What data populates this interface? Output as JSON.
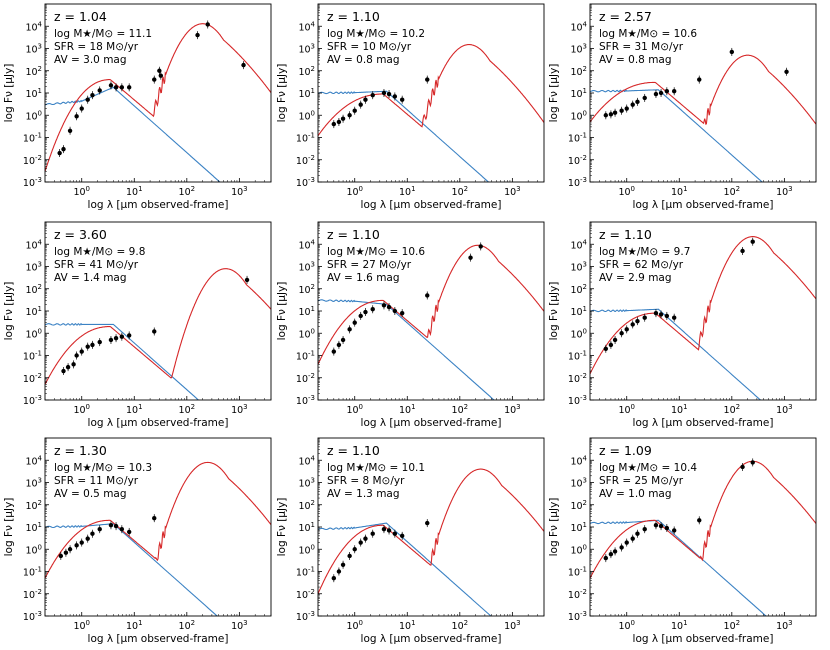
{
  "chart_data": [
    {
      "type": "line",
      "z_label": "z = 1.04",
      "mass_label": "log M★/M⊙ = 11.1",
      "sfr_label": "SFR = 18 M⊙/yr",
      "av_label": "AV = 3.0 mag",
      "blue_peak": 18,
      "blue_uv": 3,
      "red_peak": 13000,
      "red_peak_x": 200,
      "red_opt": 40,
      "red_start": 0.003,
      "points": [
        [
          0.38,
          0.02
        ],
        [
          0.45,
          0.03
        ],
        [
          0.6,
          0.2
        ],
        [
          0.8,
          0.9
        ],
        [
          1.0,
          2
        ],
        [
          1.3,
          5
        ],
        [
          1.6,
          8
        ],
        [
          2.2,
          13
        ],
        [
          3.6,
          22
        ],
        [
          4.5,
          18
        ],
        [
          5.8,
          18
        ],
        [
          8,
          18
        ],
        [
          24,
          40
        ],
        [
          30,
          100
        ],
        [
          32,
          60
        ],
        [
          160,
          4000
        ],
        [
          250,
          12000
        ],
        [
          1200,
          180
        ]
      ]
    },
    {
      "type": "line",
      "z_label": "z = 1.10",
      "mass_label": "log M★/M⊙ = 10.2",
      "sfr_label": "SFR = 10 M⊙/yr",
      "av_label": "AV = 0.8 mag",
      "blue_peak": 12,
      "blue_uv": 10,
      "red_peak": 1500,
      "red_peak_x": 150,
      "red_opt": 9,
      "red_start": 0.12,
      "points": [
        [
          0.4,
          0.4
        ],
        [
          0.5,
          0.5
        ],
        [
          0.6,
          0.7
        ],
        [
          0.8,
          1.0
        ],
        [
          1.0,
          1.6
        ],
        [
          1.3,
          3
        ],
        [
          1.6,
          5
        ],
        [
          2.2,
          8
        ],
        [
          3.6,
          10
        ],
        [
          4.5,
          9
        ],
        [
          5.8,
          7
        ],
        [
          8,
          5
        ],
        [
          24,
          40
        ]
      ]
    },
    {
      "type": "line",
      "z_label": "z = 2.57",
      "mass_label": "log M★/M⊙ = 10.6",
      "sfr_label": "SFR = 31 M⊙/yr",
      "av_label": "AV = 0.8 mag",
      "blue_peak": 14,
      "blue_uv": 12,
      "red_peak": 500,
      "red_peak_x": 200,
      "red_opt": 30,
      "red_start": 0.5,
      "points": [
        [
          0.4,
          1.0
        ],
        [
          0.5,
          1.1
        ],
        [
          0.6,
          1.3
        ],
        [
          0.8,
          1.6
        ],
        [
          1.0,
          2
        ],
        [
          1.3,
          3
        ],
        [
          1.6,
          4
        ],
        [
          2.2,
          6
        ],
        [
          3.6,
          9
        ],
        [
          4.5,
          10
        ],
        [
          5.8,
          12
        ],
        [
          8,
          12
        ],
        [
          24,
          40
        ],
        [
          100,
          700
        ],
        [
          1100,
          90
        ]
      ]
    },
    {
      "type": "line",
      "z_label": "z = 3.60",
      "mass_label": "log M★/M⊙ = 9.8",
      "sfr_label": "SFR = 41 M⊙/yr",
      "av_label": "AV = 1.4 mag",
      "blue_peak": 2.5,
      "blue_uv": 2.5,
      "red_peak": 800,
      "red_peak_x": 550,
      "red_opt": 2,
      "red_start": 0.005,
      "points": [
        [
          0.45,
          0.02
        ],
        [
          0.55,
          0.03
        ],
        [
          0.7,
          0.04
        ],
        [
          0.8,
          0.1
        ],
        [
          1.0,
          0.15
        ],
        [
          1.3,
          0.25
        ],
        [
          1.6,
          0.3
        ],
        [
          2.2,
          0.4
        ],
        [
          3.6,
          0.5
        ],
        [
          4.5,
          0.6
        ],
        [
          5.8,
          0.7
        ],
        [
          8,
          0.8
        ],
        [
          24,
          1.2
        ],
        [
          1400,
          250
        ]
      ]
    },
    {
      "type": "line",
      "z_label": "z = 1.10",
      "mass_label": "log M★/M⊙ = 10.6",
      "sfr_label": "SFR = 27 M⊙/yr",
      "av_label": "AV = 1.6 mag",
      "blue_peak": 20,
      "blue_uv": 30,
      "red_peak": 9000,
      "red_peak_x": 220,
      "red_opt": 30,
      "red_start": 0.04,
      "points": [
        [
          0.4,
          0.15
        ],
        [
          0.5,
          0.3
        ],
        [
          0.6,
          0.5
        ],
        [
          0.8,
          1.5
        ],
        [
          1.0,
          3
        ],
        [
          1.3,
          6
        ],
        [
          1.6,
          9
        ],
        [
          2.2,
          12
        ],
        [
          3.6,
          18
        ],
        [
          4.5,
          15
        ],
        [
          5.8,
          10
        ],
        [
          8,
          8
        ],
        [
          24,
          50
        ],
        [
          160,
          2500
        ],
        [
          250,
          8000
        ]
      ]
    },
    {
      "type": "line",
      "z_label": "z = 1.10",
      "mass_label": "log M★/M⊙ = 9.7",
      "sfr_label": "SFR = 62 M⊙/yr",
      "av_label": "AV = 2.9 mag",
      "blue_peak": 12,
      "blue_uv": 10,
      "red_peak": 22000,
      "red_peak_x": 250,
      "red_opt": 8,
      "red_start": 0.015,
      "points": [
        [
          0.4,
          0.2
        ],
        [
          0.5,
          0.3
        ],
        [
          0.6,
          0.5
        ],
        [
          0.8,
          1.0
        ],
        [
          1.0,
          1.5
        ],
        [
          1.3,
          2.5
        ],
        [
          1.6,
          3.5
        ],
        [
          2.2,
          5
        ],
        [
          3.6,
          8
        ],
        [
          4.5,
          7
        ],
        [
          5.8,
          6
        ],
        [
          8,
          5
        ],
        [
          160,
          5000
        ],
        [
          250,
          13000
        ]
      ]
    },
    {
      "type": "line",
      "z_label": "z = 1.30",
      "mass_label": "log M★/M⊙ = 10.3",
      "sfr_label": "SFR = 11 M⊙/yr",
      "av_label": "AV = 0.5 mag",
      "blue_peak": 14,
      "blue_uv": 10,
      "red_peak": 8000,
      "red_peak_x": 250,
      "red_opt": 20,
      "red_start": 0.05,
      "points": [
        [
          0.4,
          0.5
        ],
        [
          0.5,
          0.7
        ],
        [
          0.6,
          1.0
        ],
        [
          0.8,
          1.5
        ],
        [
          1.0,
          2
        ],
        [
          1.3,
          3
        ],
        [
          1.6,
          5
        ],
        [
          2.2,
          8
        ],
        [
          3.6,
          12
        ],
        [
          4.5,
          11
        ],
        [
          5.8,
          8
        ],
        [
          8,
          6
        ],
        [
          24,
          25
        ]
      ]
    },
    {
      "type": "line",
      "z_label": "z = 1.10",
      "mass_label": "log M★/M⊙ = 10.1",
      "sfr_label": "SFR = 8 M⊙/yr",
      "av_label": "AV = 1.3 mag",
      "blue_peak": 15,
      "blue_uv": 8,
      "red_peak": 4000,
      "red_peak_x": 250,
      "red_opt": 12,
      "red_start": 0.01,
      "points": [
        [
          0.4,
          0.05
        ],
        [
          0.5,
          0.1
        ],
        [
          0.6,
          0.2
        ],
        [
          0.8,
          0.5
        ],
        [
          1.0,
          1
        ],
        [
          1.3,
          2
        ],
        [
          1.6,
          3
        ],
        [
          2.2,
          5
        ],
        [
          3.6,
          8
        ],
        [
          4.5,
          7
        ],
        [
          5.8,
          5
        ],
        [
          8,
          4
        ],
        [
          24,
          15
        ]
      ]
    },
    {
      "type": "line",
      "z_label": "z = 1.09",
      "mass_label": "log M★/M⊙ = 10.4",
      "sfr_label": "SFR = 25 M⊙/yr",
      "av_label": "AV = 1.0 mag",
      "blue_peak": 20,
      "blue_uv": 15,
      "red_peak": 9000,
      "red_peak_x": 250,
      "red_opt": 20,
      "red_start": 0.05,
      "points": [
        [
          0.4,
          0.4
        ],
        [
          0.5,
          0.6
        ],
        [
          0.6,
          0.8
        ],
        [
          0.8,
          1.2
        ],
        [
          1.0,
          2
        ],
        [
          1.3,
          3
        ],
        [
          1.6,
          5
        ],
        [
          2.2,
          8
        ],
        [
          3.6,
          12
        ],
        [
          4.5,
          11
        ],
        [
          5.8,
          9
        ],
        [
          8,
          7
        ],
        [
          24,
          20
        ],
        [
          160,
          5000
        ],
        [
          250,
          8000
        ]
      ]
    }
  ],
  "axes": {
    "xlabel": "log λ [μm observed-frame]",
    "ylabel": "log Fν [μJy]",
    "xlim": [
      0.2,
      4000
    ],
    "ylim": [
      0.001,
      100000
    ],
    "xticks": [
      "10^0",
      "10^1",
      "10^2",
      "10^3"
    ],
    "xtick_values": [
      1,
      10,
      100,
      1000
    ],
    "yticks": [
      "10^-3",
      "10^-2",
      "10^-1",
      "10^0",
      "10^1",
      "10^2",
      "10^3",
      "10^4"
    ],
    "ytick_values": [
      0.001,
      0.01,
      0.1,
      1,
      10,
      100,
      1000,
      10000
    ]
  },
  "colors": {
    "blue_model": "#3b82c4",
    "red_model": "#d62728",
    "points": "#000000"
  }
}
